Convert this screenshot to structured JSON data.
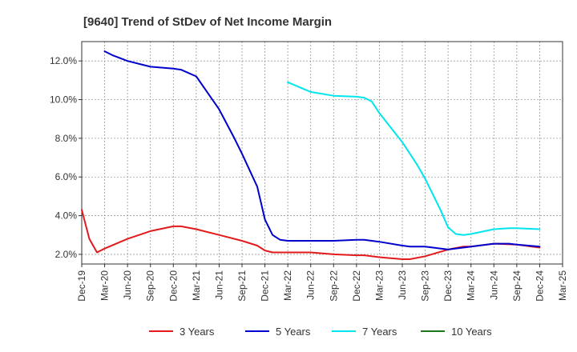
{
  "chart_data": {
    "type": "line",
    "title": "[9640]  Trend of StDev of Net Income Margin",
    "xlabel": "",
    "ylabel": "",
    "x_ticks": [
      "Dec-19",
      "Mar-20",
      "Jun-20",
      "Sep-20",
      "Dec-20",
      "Mar-21",
      "Jun-21",
      "Sep-21",
      "Dec-21",
      "Mar-22",
      "Jun-22",
      "Sep-22",
      "Dec-22",
      "Mar-23",
      "Jun-23",
      "Sep-23",
      "Dec-23",
      "Mar-24",
      "Jun-24",
      "Sep-24",
      "Dec-24",
      "Mar-25"
    ],
    "y_ticks": [
      "2.0%",
      "4.0%",
      "6.0%",
      "8.0%",
      "10.0%",
      "12.0%"
    ],
    "ylim": [
      1.5,
      13.0
    ],
    "grid": true,
    "legend_position": "bottom",
    "colors": {
      "3 Years": "#e31a1c",
      "5 Years": "#0000cc",
      "7 Years": "#00e5ee",
      "10 Years": "#1a7a1a"
    },
    "series": [
      {
        "name": "3 Years",
        "color": "#e31a1c",
        "points": [
          [
            "Dec-19",
            4.3
          ],
          [
            "Jan-20",
            2.8
          ],
          [
            "Feb-20",
            2.1
          ],
          [
            "Mar-20",
            2.3
          ],
          [
            "Jun-20",
            2.8
          ],
          [
            "Sep-20",
            3.2
          ],
          [
            "Dec-20",
            3.45
          ],
          [
            "Jan-21",
            3.45
          ],
          [
            "Mar-21",
            3.3
          ],
          [
            "Jun-21",
            3.0
          ],
          [
            "Sep-21",
            2.7
          ],
          [
            "Nov-21",
            2.45
          ],
          [
            "Dec-21",
            2.2
          ],
          [
            "Jan-22",
            2.1
          ],
          [
            "Mar-22",
            2.1
          ],
          [
            "Jun-22",
            2.1
          ],
          [
            "Sep-22",
            2.0
          ],
          [
            "Dec-22",
            1.95
          ],
          [
            "Jan-23",
            1.95
          ],
          [
            "Mar-23",
            1.85
          ],
          [
            "Jun-23",
            1.75
          ],
          [
            "Jul-23",
            1.75
          ],
          [
            "Sep-23",
            1.9
          ],
          [
            "Dec-23",
            2.25
          ],
          [
            "Feb-24",
            2.4
          ],
          [
            "Mar-24",
            2.4
          ],
          [
            "Jun-24",
            2.55
          ],
          [
            "Sep-24",
            2.5
          ],
          [
            "Dec-24",
            2.35
          ]
        ]
      },
      {
        "name": "5 Years",
        "color": "#0000cc",
        "points": [
          [
            "Mar-20",
            12.5
          ],
          [
            "Apr-20",
            12.3
          ],
          [
            "Jun-20",
            12.0
          ],
          [
            "Aug-20",
            11.8
          ],
          [
            "Sep-20",
            11.7
          ],
          [
            "Dec-20",
            11.6
          ],
          [
            "Jan-21",
            11.55
          ],
          [
            "Mar-21",
            11.2
          ],
          [
            "Jun-21",
            9.5
          ],
          [
            "Aug-21",
            8.0
          ],
          [
            "Sep-21",
            7.2
          ],
          [
            "Nov-21",
            5.5
          ],
          [
            "Dec-21",
            3.8
          ],
          [
            "Jan-22",
            3.0
          ],
          [
            "Feb-22",
            2.75
          ],
          [
            "Mar-22",
            2.7
          ],
          [
            "Jun-22",
            2.7
          ],
          [
            "Sep-22",
            2.7
          ],
          [
            "Dec-22",
            2.75
          ],
          [
            "Jan-23",
            2.75
          ],
          [
            "Mar-23",
            2.65
          ],
          [
            "Jun-23",
            2.45
          ],
          [
            "Jul-23",
            2.4
          ],
          [
            "Sep-23",
            2.4
          ],
          [
            "Dec-23",
            2.25
          ],
          [
            "Mar-24",
            2.4
          ],
          [
            "Jun-24",
            2.55
          ],
          [
            "Aug-24",
            2.55
          ],
          [
            "Sep-24",
            2.5
          ],
          [
            "Dec-24",
            2.4
          ]
        ]
      },
      {
        "name": "7 Years",
        "color": "#00e5ee",
        "points": [
          [
            "Mar-22",
            10.9
          ],
          [
            "Jun-22",
            10.4
          ],
          [
            "Sep-22",
            10.2
          ],
          [
            "Dec-22",
            10.15
          ],
          [
            "Jan-23",
            10.1
          ],
          [
            "Feb-23",
            9.9
          ],
          [
            "Mar-23",
            9.3
          ],
          [
            "Jun-23",
            7.8
          ],
          [
            "Aug-23",
            6.6
          ],
          [
            "Sep-23",
            5.9
          ],
          [
            "Nov-23",
            4.3
          ],
          [
            "Dec-23",
            3.4
          ],
          [
            "Jan-24",
            3.05
          ],
          [
            "Feb-24",
            3.0
          ],
          [
            "Mar-24",
            3.05
          ],
          [
            "Jun-24",
            3.3
          ],
          [
            "Aug-24",
            3.35
          ],
          [
            "Sep-24",
            3.35
          ],
          [
            "Dec-24",
            3.3
          ]
        ]
      },
      {
        "name": "10 Years",
        "color": "#1a7a1a",
        "points": []
      }
    ]
  }
}
